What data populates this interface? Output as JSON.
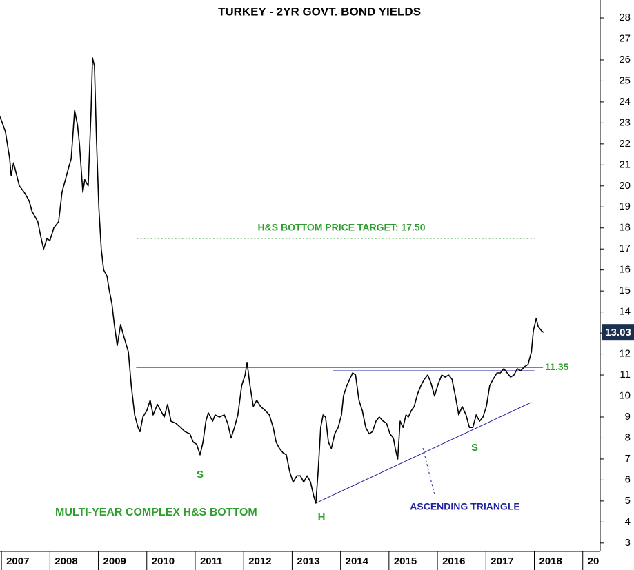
{
  "chart_data": {
    "type": "line",
    "title": "TURKEY - 2YR GOVT. BOND YIELDS",
    "color": "#000000",
    "x": [
      2006.97,
      2007.08,
      2007.17,
      2007.2,
      2007.25,
      2007.37,
      2007.47,
      2007.57,
      2007.63,
      2007.75,
      2007.82,
      2007.87,
      2007.94,
      2008.0,
      2008.08,
      2008.18,
      2008.25,
      2008.32,
      2008.39,
      2008.44,
      2008.51,
      2008.57,
      2008.61,
      2008.68,
      2008.72,
      2008.79,
      2008.85,
      2008.88,
      2008.92,
      2008.96,
      2009.01,
      2009.06,
      2009.11,
      2009.18,
      2009.22,
      2009.28,
      2009.33,
      2009.39,
      2009.46,
      2009.53,
      2009.62,
      2009.68,
      2009.75,
      2009.82,
      2009.86,
      2009.92,
      2010.0,
      2010.07,
      2010.13,
      2010.22,
      2010.29,
      2010.36,
      2010.43,
      2010.5,
      2010.6,
      2010.7,
      2010.79,
      2010.89,
      2010.96,
      2011.03,
      2011.1,
      2011.16,
      2011.22,
      2011.27,
      2011.36,
      2011.41,
      2011.5,
      2011.6,
      2011.67,
      2011.74,
      2011.81,
      2011.88,
      2011.96,
      2012.03,
      2012.07,
      2012.13,
      2012.2,
      2012.27,
      2012.35,
      2012.45,
      2012.53,
      2012.61,
      2012.67,
      2012.74,
      2012.81,
      2012.88,
      2012.95,
      2013.02,
      2013.1,
      2013.17,
      2013.24,
      2013.31,
      2013.38,
      2013.45,
      2013.49,
      2013.54,
      2013.59,
      2013.64,
      2013.69,
      2013.75,
      2013.81,
      2013.88,
      2013.95,
      2014.02,
      2014.06,
      2014.13,
      2014.19,
      2014.25,
      2014.31,
      2014.38,
      2014.45,
      2014.52,
      2014.59,
      2014.66,
      2014.73,
      2014.8,
      2014.88,
      2014.95,
      2015.02,
      2015.09,
      2015.13,
      2015.18,
      2015.23,
      2015.29,
      2015.35,
      2015.4,
      2015.46,
      2015.52,
      2015.59,
      2015.66,
      2015.73,
      2015.8,
      2015.87,
      2015.94,
      2016.02,
      2016.09,
      2016.16,
      2016.23,
      2016.3,
      2016.37,
      2016.44,
      2016.51,
      2016.59,
      2016.66,
      2016.73,
      2016.8,
      2016.87,
      2016.94,
      2017.01,
      2017.08,
      2017.15,
      2017.23,
      2017.3,
      2017.37,
      2017.44,
      2017.51,
      2017.58,
      2017.65,
      2017.72,
      2017.8,
      2017.87,
      2017.94,
      2017.98,
      2018.04,
      2018.08,
      2018.15,
      2018.19
    ],
    "values": [
      23.3,
      22.6,
      21.3,
      20.5,
      21.1,
      20.0,
      19.7,
      19.3,
      18.8,
      18.3,
      17.5,
      17.0,
      17.5,
      17.4,
      18.0,
      18.3,
      19.7,
      20.3,
      20.9,
      21.3,
      23.6,
      22.9,
      22.0,
      19.7,
      20.3,
      20.0,
      23.6,
      26.1,
      25.7,
      22.3,
      19.0,
      17.0,
      16.0,
      15.7,
      15.1,
      14.4,
      13.4,
      12.4,
      13.4,
      12.8,
      12.1,
      10.5,
      9.1,
      8.5,
      8.3,
      9.0,
      9.3,
      9.8,
      9.1,
      9.6,
      9.3,
      9.0,
      9.6,
      8.8,
      8.7,
      8.5,
      8.3,
      8.2,
      7.8,
      7.7,
      7.2,
      7.8,
      8.8,
      9.2,
      8.8,
      9.1,
      9.0,
      9.1,
      8.7,
      8.0,
      8.5,
      9.1,
      10.5,
      11.0,
      11.6,
      10.5,
      9.5,
      9.8,
      9.5,
      9.3,
      9.1,
      8.5,
      7.8,
      7.5,
      7.3,
      7.2,
      6.4,
      5.9,
      6.2,
      6.2,
      5.9,
      6.2,
      5.9,
      5.2,
      4.9,
      6.5,
      8.5,
      9.1,
      9.0,
      7.8,
      7.5,
      8.2,
      8.5,
      9.1,
      10.0,
      10.5,
      10.8,
      11.1,
      11.0,
      9.8,
      9.3,
      8.5,
      8.2,
      8.3,
      8.8,
      9.0,
      8.8,
      8.7,
      8.2,
      8.0,
      7.5,
      7.0,
      8.8,
      8.5,
      9.1,
      9.0,
      9.3,
      9.5,
      10.1,
      10.5,
      10.8,
      11.0,
      10.6,
      10.0,
      10.6,
      11.0,
      10.9,
      11.0,
      10.8,
      10.0,
      9.1,
      9.5,
      9.1,
      8.5,
      8.5,
      9.1,
      8.8,
      9.0,
      9.5,
      10.5,
      10.8,
      11.1,
      11.1,
      11.3,
      11.1,
      10.9,
      11.0,
      11.3,
      11.2,
      11.4,
      11.5,
      12.1,
      13.1,
      13.7,
      13.3,
      13.1,
      13.03
    ],
    "xlim": [
      2006.97,
      2019.36
    ],
    "xticks": [
      2007,
      2008,
      2009,
      2010,
      2011,
      2012,
      2013,
      2014,
      2015,
      2016,
      2017,
      2018,
      {
        "value": 2019,
        "label": "20"
      }
    ],
    "ylim": [
      2.6,
      28.75
    ],
    "yticks": [
      3,
      4,
      5,
      6,
      7,
      8,
      9,
      10,
      11,
      12,
      13,
      14,
      15,
      16,
      17,
      18,
      19,
      20,
      21,
      22,
      23,
      24,
      25,
      26,
      27,
      28
    ],
    "levels": [
      {
        "label": "H&S BOTTOM PRICE TARGET: 17.50",
        "value": 17.5,
        "x": [
          2009.8,
          2018.0
        ],
        "color": "#2e9e2e",
        "dotted": true
      },
      {
        "value": 11.35,
        "x": [
          2009.78,
          2018.18
        ],
        "color": "#2e9e2e",
        "dotted": false
      }
    ],
    "trendlines": [
      {
        "x": [
          2013.85,
          2018.0
        ],
        "y": [
          11.2,
          11.2
        ],
        "color": "#1f1fa0"
      },
      {
        "x": [
          2013.49,
          2017.94
        ],
        "y": [
          4.9,
          9.7
        ],
        "color": "#1f1fa0"
      }
    ],
    "annotations": [
      {
        "text": "S",
        "color": "#2e9e2e"
      },
      {
        "text": "H",
        "color": "#2e9e2e"
      },
      {
        "text": "S",
        "color": "#2e9e2e"
      },
      {
        "text": "MULTI-YEAR COMPLEX H&S BOTTOM",
        "color": "#2e9e2e"
      },
      {
        "text": "ASCENDING TRIANGLE",
        "color": "#1f1fa0"
      }
    ],
    "last_value_color": "#1b2f4f"
  }
}
